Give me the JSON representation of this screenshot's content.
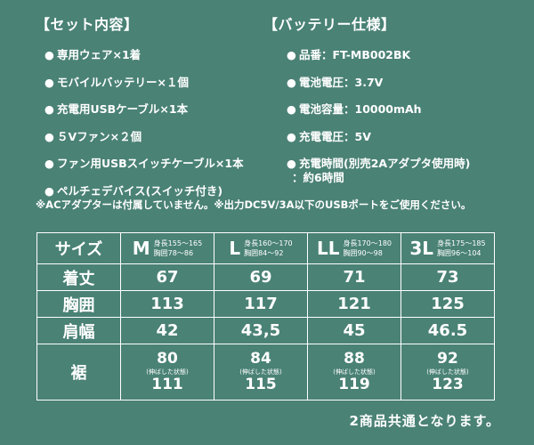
{
  "set": {
    "title": "【セット内容】",
    "items": [
      "専用ウェア×1着",
      "モバイルバッテリー×１個",
      "充電用USBケーブル×1本",
      "５Vファン×２個",
      "ファン用USBスイッチケーブル×1本",
      "ペルチェデバイス(スイッチ付き)"
    ]
  },
  "battery": {
    "title": "【バッテリー仕様】",
    "items": [
      "品番：FT-MB002BK",
      "電池電圧：3.7V",
      "電池容量：10000mAh",
      "充電電圧：5V",
      "充電時間(別売2Aアダプタ使用時)"
    ],
    "charge_time_value": "：約6時間"
  },
  "bullet": "●",
  "note": "※ACアダプターは付属していません。※出力DC5V/3A以下のUSBポートをご使用ください。",
  "table": {
    "header_label": "サイズ",
    "sizes": [
      {
        "code": "M",
        "height": "身長155～165",
        "chest": "胸囲78～86"
      },
      {
        "code": "L",
        "height": "身長160～170",
        "chest": "胸囲84～92"
      },
      {
        "code": "LL",
        "height": "身長170～180",
        "chest": "胸囲90～98"
      },
      {
        "code": "3L",
        "height": "身長175～185",
        "chest": "胸囲96～104"
      }
    ],
    "rows": [
      {
        "label": "着丈",
        "values": [
          "67",
          "69",
          "71",
          "73"
        ]
      },
      {
        "label": "胸囲",
        "values": [
          "113",
          "117",
          "121",
          "125"
        ]
      },
      {
        "label": "肩幅",
        "values": [
          "42",
          "43,5",
          "45",
          "46.5"
        ]
      }
    ],
    "hem": {
      "label": "裾",
      "values": [
        {
          "normal": "80",
          "note": "(伸ばした状態)",
          "stretched": "111"
        },
        {
          "normal": "84",
          "note": "(伸ばした状態)",
          "stretched": "115"
        },
        {
          "normal": "88",
          "note": "(伸ばした状態)",
          "stretched": "119"
        },
        {
          "normal": "92",
          "note": "(伸ばした状態)",
          "stretched": "123"
        }
      ]
    }
  },
  "footnote": "2商品共通となります。"
}
